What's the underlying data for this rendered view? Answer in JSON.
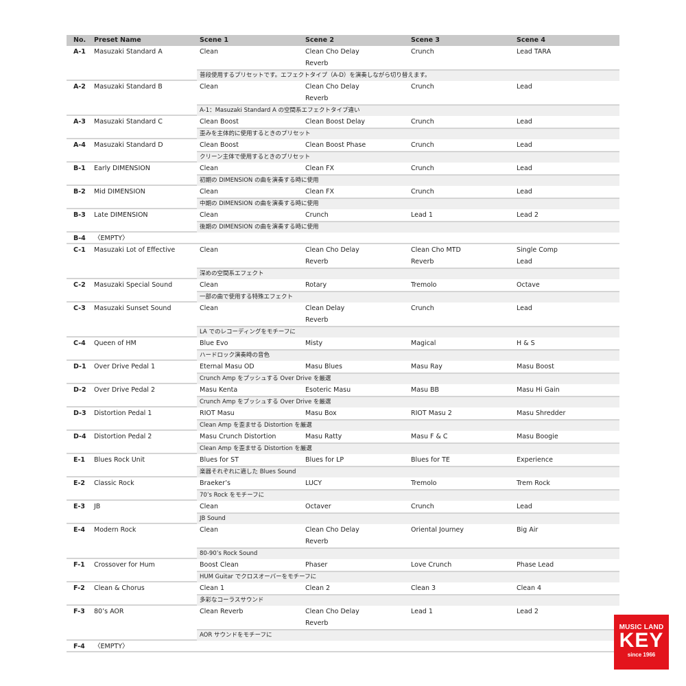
{
  "header": {
    "no": "No.",
    "name": "Preset Name",
    "scenes": [
      "Scene 1",
      "Scene 2",
      "Scene 3",
      "Scene 4"
    ]
  },
  "presets": [
    {
      "no": "A-1",
      "name": "Masuzaki Standard A",
      "scenes": [
        [
          "Clean"
        ],
        [
          "Clean Cho Delay",
          "Reverb"
        ],
        [
          "Crunch"
        ],
        [
          "Lead TARA"
        ]
      ],
      "note": "普段使用するプリセットです。エフェクトタイプ（A-D）を演奏しながら切り替えます。"
    },
    {
      "no": "A-2",
      "name": "Masuzaki Standard B",
      "scenes": [
        [
          "Clean"
        ],
        [
          "Clean Cho Delay",
          "Reverb"
        ],
        [
          "Crunch"
        ],
        [
          "Lead"
        ]
      ],
      "note": "A-1：Masuzaki Standard A の空間系エフェクトタイプ違い"
    },
    {
      "no": "A-3",
      "name": "Masuzaki Standard C",
      "scenes": [
        [
          "Clean Boost"
        ],
        [
          "Clean Boost Delay"
        ],
        [
          "Crunch"
        ],
        [
          "Lead"
        ]
      ],
      "note": "歪みを主体的に使用するときのプリセット"
    },
    {
      "no": "A-4",
      "name": "Masuzaki Standard D",
      "scenes": [
        [
          "Clean Boost"
        ],
        [
          "Clean Boost Phase"
        ],
        [
          "Crunch"
        ],
        [
          "Lead"
        ]
      ],
      "note": "クリーン主体で使用するときのプリセット"
    },
    {
      "no": "B-1",
      "name": "Early DIMENSION",
      "scenes": [
        [
          "Clean"
        ],
        [
          "Clean FX"
        ],
        [
          "Crunch"
        ],
        [
          "Lead"
        ]
      ],
      "note": "初期の DIMENSION の曲を演奏する時に使用"
    },
    {
      "no": "B-2",
      "name": "Mid DIMENSION",
      "scenes": [
        [
          "Clean"
        ],
        [
          "Clean FX"
        ],
        [
          "Crunch"
        ],
        [
          "Lead"
        ]
      ],
      "note": "中期の DIMENSION の曲を演奏する時に使用"
    },
    {
      "no": "B-3",
      "name": "Late DIMENSION",
      "scenes": [
        [
          "Clean"
        ],
        [
          "Crunch"
        ],
        [
          "Lead 1"
        ],
        [
          "Lead 2"
        ]
      ],
      "note": "後期の DIMENSION の曲を演奏する時に使用"
    },
    {
      "no": "B-4",
      "name": "〈EMPTY〉",
      "scenes": [],
      "note": ""
    },
    {
      "no": "C-1",
      "name": "Masuzaki Lot of Effective",
      "scenes": [
        [
          "Clean"
        ],
        [
          "Clean Cho Delay",
          "Reverb"
        ],
        [
          "Clean Cho MTD",
          "Reverb"
        ],
        [
          "Single Comp",
          "Lead"
        ]
      ],
      "note": "深めの空間系エフェクト"
    },
    {
      "no": "C-2",
      "name": "Masuzaki Special Sound",
      "scenes": [
        [
          "Clean"
        ],
        [
          "Rotary"
        ],
        [
          "Tremolo"
        ],
        [
          "Octave"
        ]
      ],
      "note": "一部の曲で使用する特殊エフェクト"
    },
    {
      "no": "C-3",
      "name": "Masuzaki Sunset Sound",
      "scenes": [
        [
          "Clean"
        ],
        [
          "Clean Delay",
          "Reverb"
        ],
        [
          "Crunch"
        ],
        [
          "Lead"
        ]
      ],
      "note": "LA でのレコーディングをモチーフに"
    },
    {
      "no": "C-4",
      "name": "Queen of HM",
      "scenes": [
        [
          "Blue Evo"
        ],
        [
          "Misty"
        ],
        [
          "Magical"
        ],
        [
          "H & S"
        ]
      ],
      "note": "ハードロック演奏時の音色"
    },
    {
      "no": "D-1",
      "name": "Over Drive Pedal 1",
      "scenes": [
        [
          "Eternal Masu OD"
        ],
        [
          "Masu Blues"
        ],
        [
          "Masu Ray"
        ],
        [
          "Masu Boost"
        ]
      ],
      "note": "Crunch Amp をプッシュする Over Drive を厳選"
    },
    {
      "no": "D-2",
      "name": "Over Drive Pedal 2",
      "scenes": [
        [
          "Masu Kenta"
        ],
        [
          "Esoteric Masu"
        ],
        [
          "Masu BB"
        ],
        [
          "Masu Hi Gain"
        ]
      ],
      "note": "Crunch Amp をプッシュする Over Drive を厳選"
    },
    {
      "no": "D-3",
      "name": "Distortion Pedal 1",
      "scenes": [
        [
          "RIOT Masu"
        ],
        [
          "Masu Box"
        ],
        [
          "RIOT Masu 2"
        ],
        [
          "Masu Shredder"
        ]
      ],
      "note": "Clean Amp を歪ませる Distortion を厳選"
    },
    {
      "no": "D-4",
      "name": "Distortion Pedal 2",
      "scenes": [
        [
          "Masu Crunch Distortion"
        ],
        [
          "Masu Ratty"
        ],
        [
          "Masu F & C"
        ],
        [
          "Masu Boogie"
        ]
      ],
      "note": "Clean Amp を歪ませる Distortion を厳選"
    },
    {
      "no": "E-1",
      "name": "Blues Rock Unit",
      "scenes": [
        [
          "Blues for ST"
        ],
        [
          "Blues for LP"
        ],
        [
          "Blues for TE"
        ],
        [
          "Experience"
        ]
      ],
      "note": "楽器それぞれに適した Blues Sound"
    },
    {
      "no": "E-2",
      "name": "Classic Rock",
      "scenes": [
        [
          "Braeker’s"
        ],
        [
          "LUCY"
        ],
        [
          "Tremolo"
        ],
        [
          "Trem Rock"
        ]
      ],
      "note": "70’s Rock をモチーフに"
    },
    {
      "no": "E-3",
      "name": "JB",
      "scenes": [
        [
          "Clean"
        ],
        [
          "Octaver"
        ],
        [
          "Crunch"
        ],
        [
          "Lead"
        ]
      ],
      "note": "JB Sound"
    },
    {
      "no": "E-4",
      "name": "Modern Rock",
      "scenes": [
        [
          "Clean"
        ],
        [
          "Clean Cho Delay",
          "Reverb"
        ],
        [
          "Oriental Journey"
        ],
        [
          "Big Air"
        ]
      ],
      "note": "80-90’s Rock Sound"
    },
    {
      "no": "F-1",
      "name": "Crossover for Hum",
      "scenes": [
        [
          "Boost Clean"
        ],
        [
          "Phaser"
        ],
        [
          "Love Crunch"
        ],
        [
          "Phase Lead"
        ]
      ],
      "note": "HUM Guitar でクロスオーバーをモチーフに"
    },
    {
      "no": "F-2",
      "name": "Clean & Chorus",
      "scenes": [
        [
          "Clean 1"
        ],
        [
          "Clean 2"
        ],
        [
          "Clean 3"
        ],
        [
          "Clean 4"
        ]
      ],
      "note": "多彩なコーラスサウンド"
    },
    {
      "no": "F-3",
      "name": "80’s AOR",
      "scenes": [
        [
          "Clean Reverb"
        ],
        [
          "Clean Cho Delay",
          "Reverb"
        ],
        [
          "Lead 1"
        ],
        [
          "Lead 2"
        ]
      ],
      "note": "AOR サウンドをモチーフに"
    },
    {
      "no": "F-4",
      "name": "〈EMPTY〉",
      "scenes": [],
      "note": ""
    }
  ],
  "logo": {
    "line1": "MUSIC LAND",
    "line2": "KEY",
    "line3": "since 1966",
    "color": "#e3141c"
  }
}
